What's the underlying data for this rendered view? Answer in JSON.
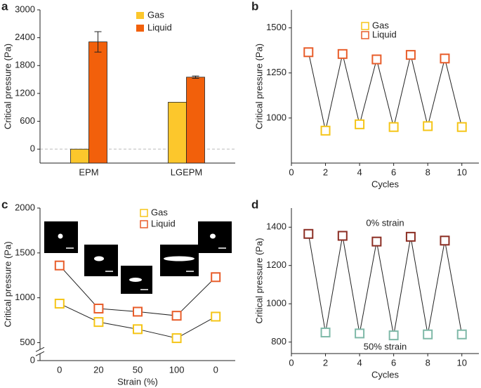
{
  "chart_data": [
    {
      "panel": "a",
      "type": "bar",
      "ylabel": "Critical pressure (Pa)",
      "categories": [
        "EPM",
        "LGEPM"
      ],
      "series": [
        {
          "name": "Gas",
          "color": "#fcc72c",
          "values": [
            0,
            1010
          ]
        },
        {
          "name": "Liquid",
          "color": "#f2600b",
          "values": [
            2310,
            1550
          ],
          "errors": [
            220,
            25
          ]
        }
      ],
      "ylim": [
        -300,
        3000
      ],
      "yticks": [
        0,
        600,
        1200,
        1800,
        2400,
        3000
      ],
      "zero_line": true,
      "legend": true,
      "marker": "filled-square"
    },
    {
      "panel": "b",
      "type": "line",
      "ylabel": "Critical pressure (Pa)",
      "xlabel": "Cycles",
      "connect": "all",
      "series": [
        {
          "name": "Gas",
          "color": "#f5c518",
          "x": [
            2,
            4,
            6,
            8,
            10
          ],
          "values": [
            930,
            965,
            950,
            955,
            950
          ]
        },
        {
          "name": "Liquid",
          "color": "#e85d2a",
          "x": [
            1,
            3,
            5,
            7,
            9
          ],
          "values": [
            1365,
            1355,
            1325,
            1350,
            1330
          ]
        }
      ],
      "xlim": [
        0,
        11
      ],
      "xticks": [
        0,
        2,
        4,
        6,
        8,
        10
      ],
      "ylim": [
        750,
        1600
      ],
      "yticks": [
        1000,
        1250,
        1500
      ],
      "legend": true,
      "marker": "square"
    },
    {
      "panel": "c",
      "type": "line",
      "ylabel": "Critical pressure (Pa)",
      "xlabel": "Strain (%)",
      "connect": "series",
      "categories": [
        "0",
        "20",
        "50",
        "100",
        "0"
      ],
      "series": [
        {
          "name": "Gas",
          "color": "#f5c518",
          "values": [
            935,
            730,
            650,
            550,
            790
          ]
        },
        {
          "name": "Liquid",
          "color": "#e85d2a",
          "values": [
            1360,
            880,
            845,
            800,
            1230
          ]
        }
      ],
      "ylim": [
        0,
        2000
      ],
      "ybreak": [
        100,
        400
      ],
      "yticks": [
        0,
        500,
        1000,
        1500,
        2000
      ],
      "legend": true,
      "marker": "square"
    },
    {
      "panel": "d",
      "type": "line",
      "ylabel": "Critical pressure (Pa)",
      "xlabel": "Cycles",
      "connect": "all",
      "series": [
        {
          "name": "0% strain",
          "color": "#8b2d23",
          "x": [
            1,
            3,
            5,
            7,
            9
          ],
          "values": [
            1365,
            1355,
            1325,
            1350,
            1330
          ]
        },
        {
          "name": "50% strain",
          "color": "#7fb9a8",
          "x": [
            2,
            4,
            6,
            8,
            10
          ],
          "values": [
            850,
            845,
            835,
            840,
            840
          ]
        }
      ],
      "xlim": [
        0,
        11
      ],
      "xticks": [
        0,
        2,
        4,
        6,
        8,
        10
      ],
      "ylim": [
        740,
        1500
      ],
      "yticks": [
        800,
        1000,
        1200,
        1400
      ],
      "series_labels": true,
      "marker": "square"
    }
  ]
}
